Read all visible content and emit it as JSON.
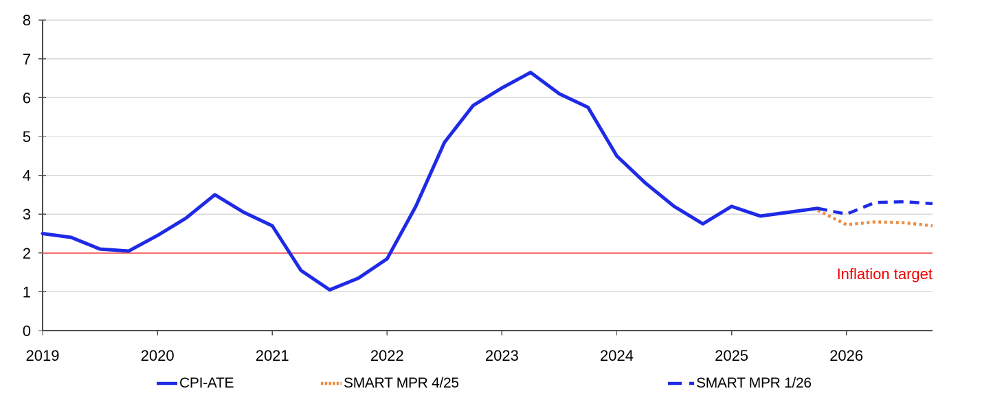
{
  "chart_data": {
    "type": "line",
    "title": "",
    "x_axis": {
      "tick_labels": [
        "2019",
        "2020",
        "2021",
        "2022",
        "2023",
        "2024",
        "2025",
        "2026"
      ],
      "unit": "quarterly",
      "range": "2019Q1 to 2026Q4"
    },
    "y_axis": {
      "min": 0,
      "max": 8,
      "tick_interval": 1,
      "tick_labels": [
        "0",
        "1",
        "2",
        "3",
        "4",
        "5",
        "6",
        "7",
        "8"
      ]
    },
    "grid": "horizontal",
    "legend_position": "bottom",
    "reference_line": {
      "value": 2,
      "label": "Inflation target",
      "label_color": "#f20000",
      "line_color": "#f37070"
    },
    "series": [
      {
        "name": "CPI-ATE",
        "style": "solid",
        "color": "#1f2ae6",
        "start_quarter_index": 0,
        "values": [
          2.5,
          2.4,
          2.1,
          2.05,
          2.45,
          2.9,
          3.5,
          3.05,
          2.7,
          1.55,
          1.05,
          1.35,
          1.85,
          3.2,
          4.85,
          5.8,
          6.25,
          6.65,
          6.1,
          5.75,
          4.5,
          3.8,
          3.2,
          2.75,
          3.2,
          2.95,
          3.05,
          3.15
        ]
      },
      {
        "name": "SMART MPR 4/25",
        "style": "dotted",
        "color": "#ed8b3f",
        "start_quarter_index": 27,
        "values": [
          3.1,
          2.73,
          2.8,
          2.78,
          2.7
        ]
      },
      {
        "name": "SMART MPR 1/26",
        "style": "dashed",
        "color": "#1f2ae6",
        "start_quarter_index": 27,
        "values": [
          3.15,
          3.0,
          3.3,
          3.32,
          3.27
        ]
      }
    ],
    "colors": {
      "gridline": "#d9d9d9",
      "axis": "#4d4d4d",
      "text": "#000000"
    }
  }
}
